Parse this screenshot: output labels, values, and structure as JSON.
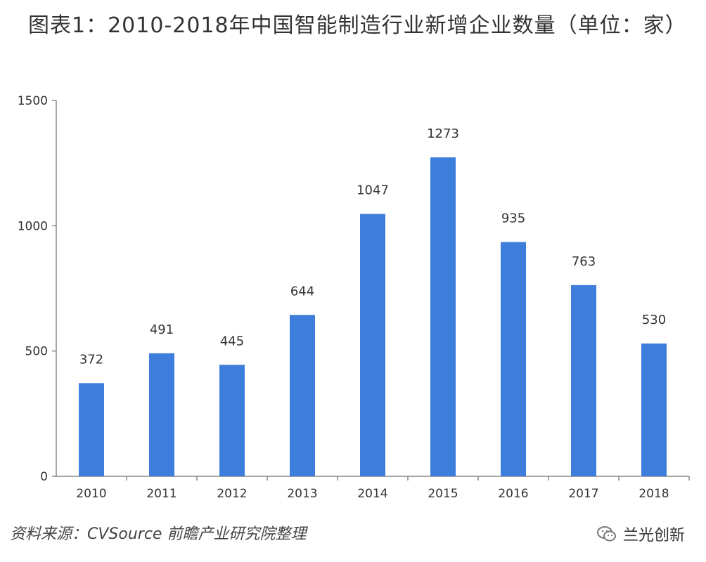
{
  "chart_data": {
    "type": "bar",
    "title": "图表1：2010-2018年中国智能制造行业新增企业数量（单位：家）",
    "categories": [
      "2010",
      "2011",
      "2012",
      "2013",
      "2014",
      "2015",
      "2016",
      "2017",
      "2018"
    ],
    "values": [
      372,
      491,
      445,
      644,
      1047,
      1273,
      935,
      763,
      530
    ],
    "data_labels": [
      "372",
      "491",
      "445",
      "644",
      "1047",
      "1273",
      "935",
      "763",
      "530"
    ],
    "ylim": [
      0,
      1500
    ],
    "yticks": [
      0,
      500,
      1000,
      1500
    ],
    "ytick_labels": [
      "0",
      "500",
      "1000",
      "1500"
    ],
    "xlabel": "",
    "ylabel": "",
    "grid": false,
    "bar_color": "#3d7ddb"
  },
  "footer": {
    "source": "资料来源：CVSource 前瞻产业研究院整理",
    "brand": "兰光创新"
  }
}
